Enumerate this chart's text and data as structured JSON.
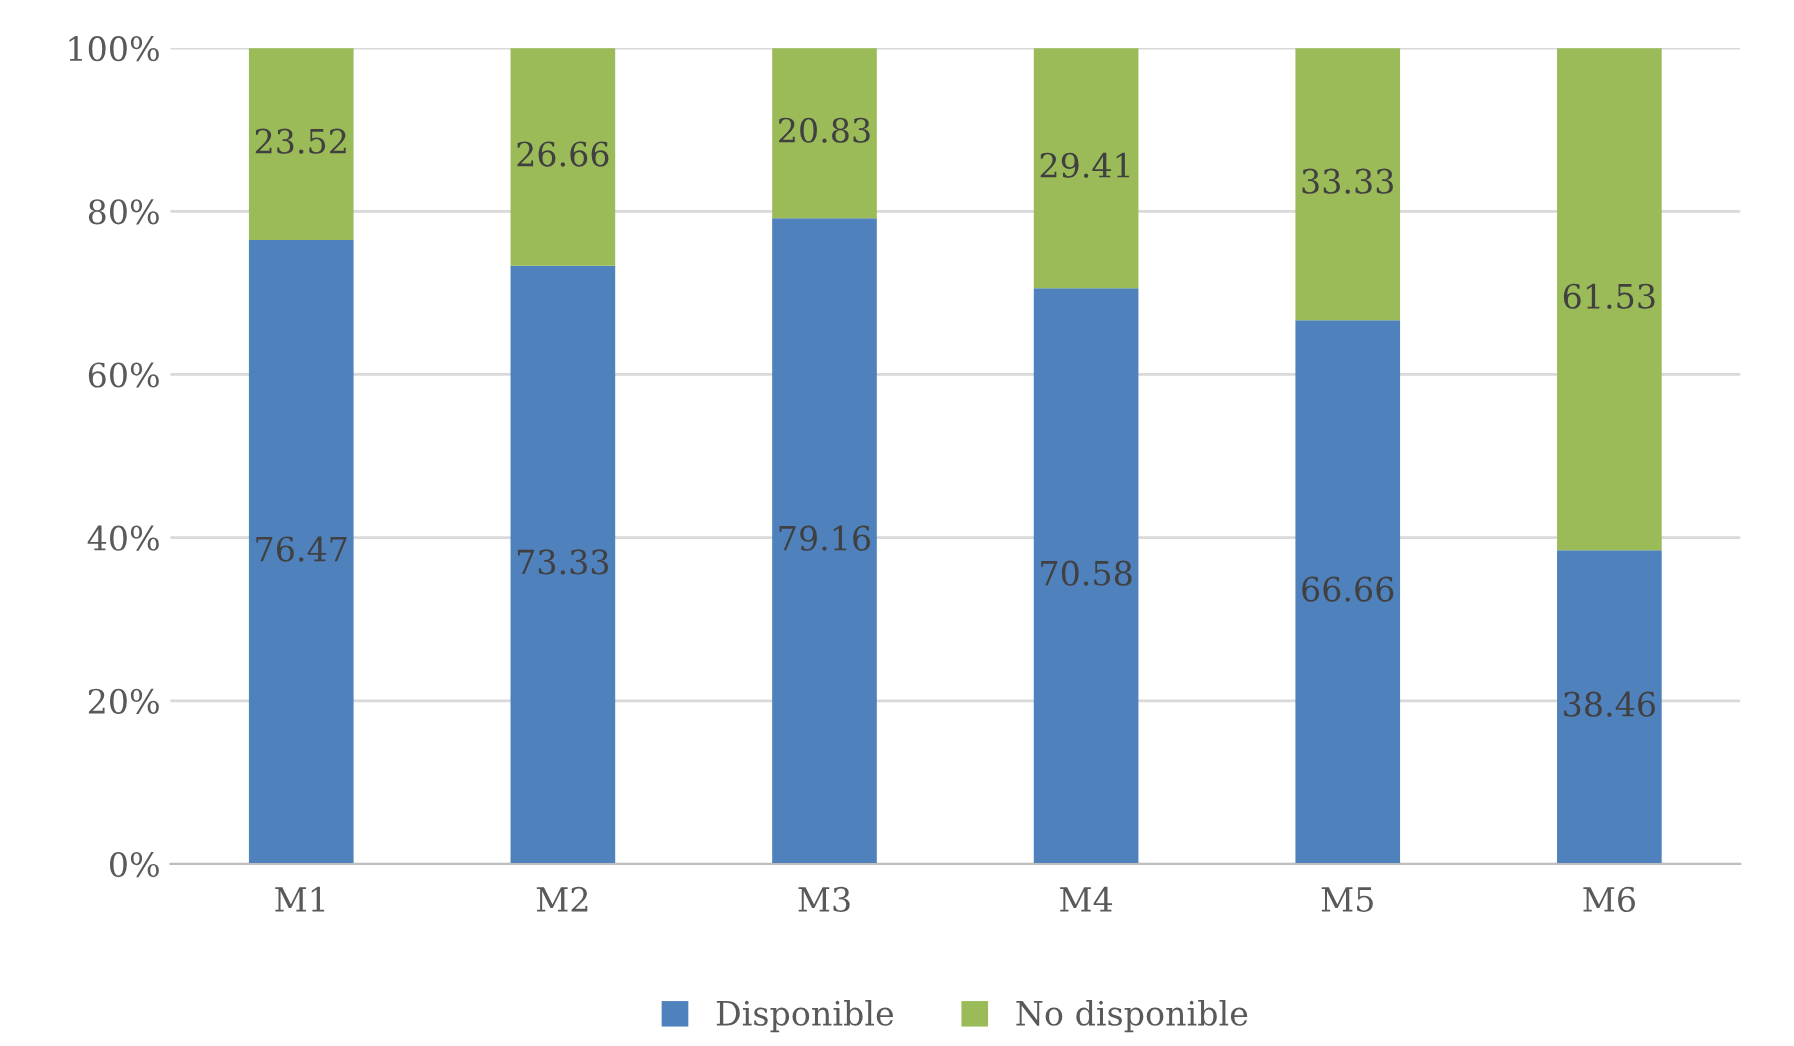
{
  "chart_data": {
    "type": "bar",
    "stacked": true,
    "categories": [
      "M1",
      "M2",
      "M3",
      "M4",
      "M5",
      "M6"
    ],
    "series": [
      {
        "name": "Disponible",
        "color": "#4f81bd",
        "values": [
          76.47,
          73.33,
          79.16,
          70.58,
          66.66,
          38.46
        ]
      },
      {
        "name": "No disponible",
        "color": "#9bbb59",
        "values": [
          23.52,
          26.66,
          20.83,
          29.41,
          33.33,
          61.53
        ]
      }
    ],
    "ylim": [
      0,
      100
    ],
    "yticks": [
      {
        "value": 0,
        "label": "0%"
      },
      {
        "value": 20,
        "label": "20%"
      },
      {
        "value": 40,
        "label": "40%"
      },
      {
        "value": 60,
        "label": "60%"
      },
      {
        "value": 80,
        "label": "80%"
      },
      {
        "value": 100,
        "label": "100%"
      }
    ],
    "grid": "y",
    "legend": "bottom",
    "data_labels": true
  }
}
